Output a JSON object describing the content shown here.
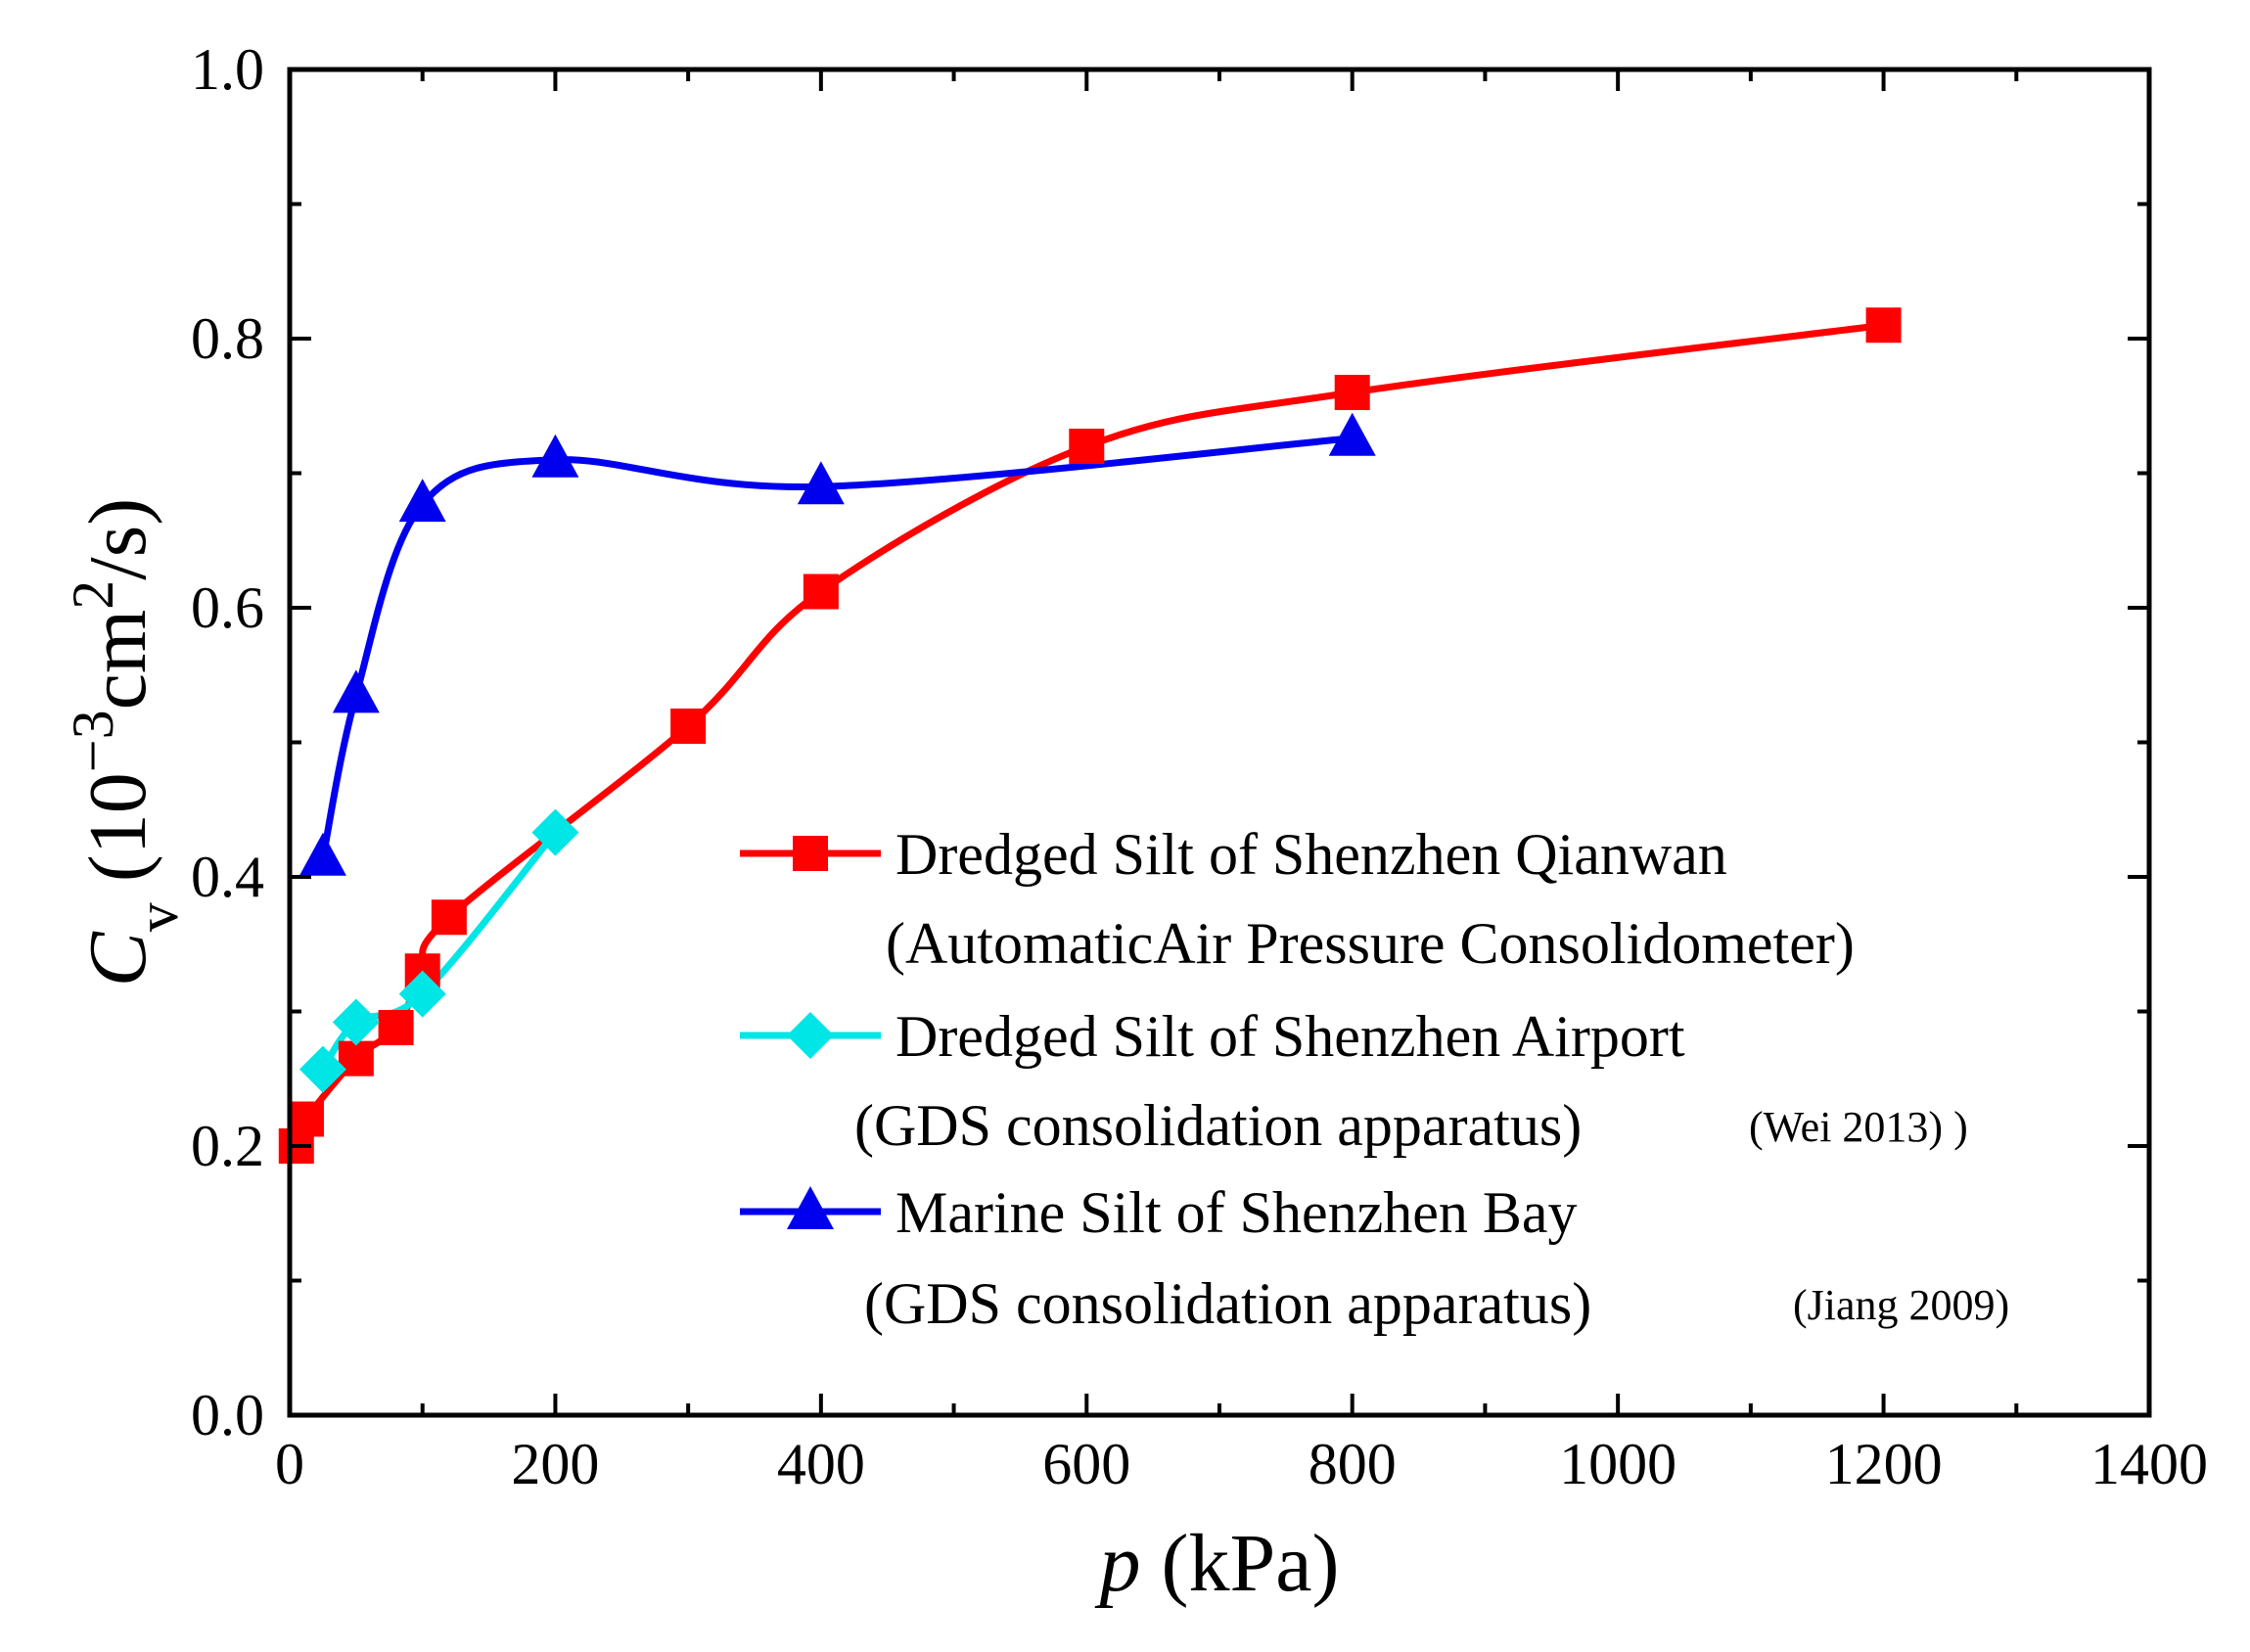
{
  "chart_data": {
    "type": "line",
    "xlim": [
      0,
      1400
    ],
    "ylim": [
      0.0,
      1.0
    ],
    "x_ticks": [
      0,
      200,
      400,
      600,
      800,
      1000,
      1200,
      1400
    ],
    "x_tick_labels": [
      "0",
      "200",
      "400",
      "600",
      "800",
      "1000",
      "1200",
      "1400"
    ],
    "y_ticks": [
      0.0,
      0.2,
      0.4,
      0.6,
      0.8,
      1.0
    ],
    "y_tick_labels": [
      "0.0",
      "0.2",
      "0.4",
      "0.6",
      "0.8",
      "1.0"
    ],
    "xlabel": {
      "italic": "p",
      "text": " (kPa)"
    },
    "ylabel": {
      "italic": "C",
      "sub": "v",
      "text1": " (10",
      "sup1": "−3",
      "text2": "cm",
      "sup2": "2",
      "text3": "/s)"
    },
    "grid": false,
    "legend_position": "lower-right",
    "series": [
      {
        "name": "Dredged Silt of Shenzhen Qianwan",
        "note": "(AutomaticAir Pressure Consolidometer)",
        "color": "#ff0000",
        "marker": "square",
        "x": [
          5,
          12.5,
          50,
          80,
          100,
          120,
          300,
          400,
          600,
          800,
          1200
        ],
        "y": [
          0.2,
          0.22,
          0.265,
          0.288,
          0.33,
          0.37,
          0.512,
          0.612,
          0.72,
          0.76,
          0.81
        ]
      },
      {
        "name": "Dredged Silt of Shenzhen Airport",
        "note": "(GDS consolidation apparatus)",
        "citation": "(Wei 2013) )",
        "color": "#00e5e5",
        "marker": "diamond",
        "x": [
          25,
          50,
          100,
          200
        ],
        "y": [
          0.257,
          0.292,
          0.313,
          0.433
        ]
      },
      {
        "name": "Marine Silt of  Shenzhen Bay",
        "note": "(GDS consolidation apparatus)",
        "citation": "(Jiang 2009)",
        "color": "#0000ee",
        "marker": "triangle",
        "x": [
          25,
          50,
          100,
          200,
          400,
          800
        ],
        "y": [
          0.414,
          0.535,
          0.677,
          0.71,
          0.69,
          0.726
        ]
      }
    ]
  }
}
